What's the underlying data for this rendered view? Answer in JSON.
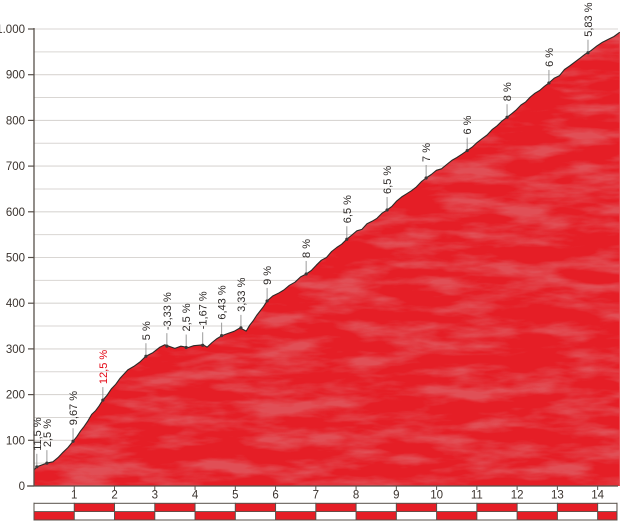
{
  "chart_data": {
    "type": "area",
    "title": "",
    "xlabel": "",
    "ylabel": "",
    "xlim": [
      0,
      14.55
    ],
    "ylim": [
      0,
      1000
    ],
    "grid": "horizontal lines every 50 m, major labels every 100 m",
    "legend": "none",
    "y_ticks": [
      {
        "value": 0,
        "label": "0"
      },
      {
        "value": 100,
        "label": "100"
      },
      {
        "value": 200,
        "label": "200"
      },
      {
        "value": 300,
        "label": "300"
      },
      {
        "value": 400,
        "label": "400"
      },
      {
        "value": 500,
        "label": "500"
      },
      {
        "value": 600,
        "label": "600"
      },
      {
        "value": 700,
        "label": "700"
      },
      {
        "value": 800,
        "label": "800"
      },
      {
        "value": 900,
        "label": "900"
      },
      {
        "value": 1000,
        "label": "1.000"
      }
    ],
    "x_ticks": [
      1,
      2,
      3,
      4,
      5,
      6,
      7,
      8,
      9,
      10,
      11,
      12,
      13,
      14
    ],
    "profile_km_elevation": [
      [
        0.0,
        35
      ],
      [
        0.07,
        42
      ],
      [
        0.32,
        50
      ],
      [
        0.47,
        53
      ],
      [
        0.97,
        98
      ],
      [
        1.71,
        188
      ],
      [
        2.14,
        236
      ],
      [
        2.33,
        254
      ],
      [
        2.78,
        284
      ],
      [
        3.13,
        304
      ],
      [
        3.25,
        309
      ],
      [
        3.5,
        301
      ],
      [
        3.65,
        306
      ],
      [
        3.83,
        303
      ],
      [
        3.97,
        307
      ],
      [
        4.2,
        309
      ],
      [
        4.3,
        304
      ],
      [
        4.67,
        329
      ],
      [
        5.12,
        346
      ],
      [
        5.27,
        339
      ],
      [
        5.79,
        405
      ],
      [
        6.76,
        464
      ],
      [
        7.77,
        540
      ],
      [
        8.77,
        604
      ],
      [
        9.74,
        674
      ],
      [
        10.76,
        734
      ],
      [
        11.75,
        807
      ],
      [
        12.79,
        882
      ],
      [
        13.69,
        945
      ],
      [
        14.55,
        993
      ]
    ],
    "gradient_labels": [
      {
        "km": 0.07,
        "m": 42,
        "text": "11,5 %",
        "highlight": false
      },
      {
        "km": 0.32,
        "m": 50,
        "text": "2,5 %",
        "highlight": false
      },
      {
        "km": 0.97,
        "m": 98,
        "text": "9,67 %",
        "highlight": false
      },
      {
        "km": 1.71,
        "m": 188,
        "text": "12,5 %",
        "highlight": true
      },
      {
        "km": 2.78,
        "m": 284,
        "text": "5 %",
        "highlight": false
      },
      {
        "km": 3.3,
        "m": 306,
        "text": "-3,33 %",
        "highlight": false
      },
      {
        "km": 3.78,
        "m": 303,
        "text": "2,5 %",
        "highlight": false
      },
      {
        "km": 4.19,
        "m": 308,
        "text": "-1,67 %",
        "highlight": false
      },
      {
        "km": 4.66,
        "m": 329,
        "text": "6,43 %",
        "highlight": false
      },
      {
        "km": 5.14,
        "m": 346,
        "text": "3,33 %",
        "highlight": false
      },
      {
        "km": 5.79,
        "m": 405,
        "text": "9 %",
        "highlight": false
      },
      {
        "km": 6.76,
        "m": 464,
        "text": "8 %",
        "highlight": false
      },
      {
        "km": 7.77,
        "m": 540,
        "text": "6,5 %",
        "highlight": false
      },
      {
        "km": 8.77,
        "m": 604,
        "text": "6,5 %",
        "highlight": false
      },
      {
        "km": 9.74,
        "m": 674,
        "text": "7 %",
        "highlight": false
      },
      {
        "km": 10.76,
        "m": 734,
        "text": "6 %",
        "highlight": false
      },
      {
        "km": 11.75,
        "m": 807,
        "text": "8 %",
        "highlight": false
      },
      {
        "km": 12.79,
        "m": 882,
        "text": "6 %",
        "highlight": false
      },
      {
        "km": 13.76,
        "m": 948,
        "text": "5,83 %",
        "highlight": false
      }
    ],
    "km_bar": {
      "rows": 2,
      "pattern": "checkerboard alternating per km, top row starts white, bottom row starts red",
      "segment_km": 1,
      "total_km": 14.48
    },
    "colors": {
      "profile_fill": "#e51e26",
      "profile_texture_dark": "#bf1418",
      "profile_outline": "#2e2a27",
      "grid": "#d9d6d3",
      "axis": "#57504a",
      "tick_label": "#3a332e",
      "gradient_label": "#2e2a28",
      "gradient_label_highlight": "#e30613",
      "leader_line": "#9b9b9b",
      "bar_red": "#e51e26",
      "bar_white": "#ffffff",
      "bar_border": "#57504a"
    }
  }
}
